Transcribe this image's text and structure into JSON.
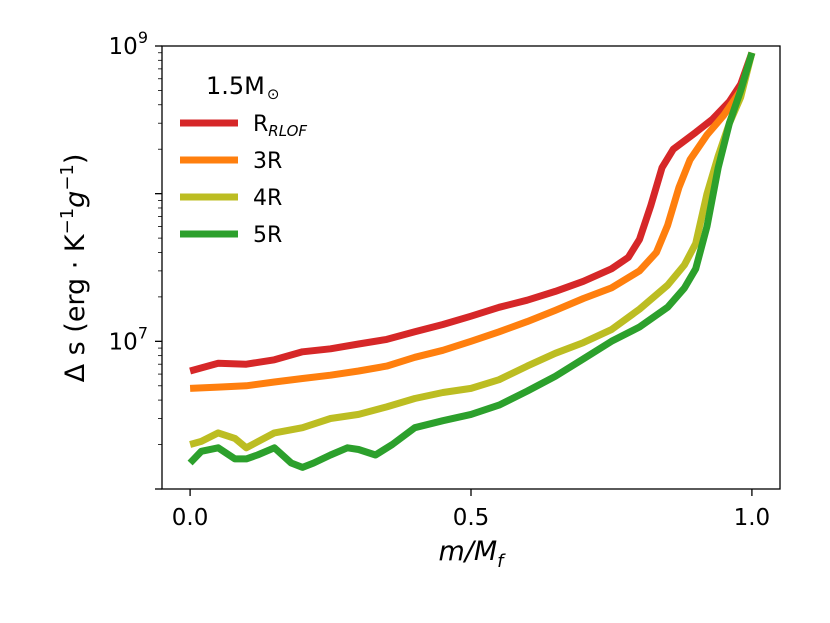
{
  "chart_data": {
    "type": "line",
    "title": "",
    "xlabel": "m/M",
    "xlabel_sub": "f",
    "ylabel": "Δ s (erg · K",
    "ylabel_parts": {
      "sup1": "−1",
      "g": "g",
      "sup2": "−1",
      "close": ")"
    },
    "yscale": "log",
    "xlim": [
      -0.05,
      1.05
    ],
    "ylim": [
      1000000,
      1000000000
    ],
    "x_ticks": [
      {
        "v": 0.0,
        "label": "0.0"
      },
      {
        "v": 0.5,
        "label": "0.5"
      },
      {
        "v": 1.0,
        "label": "1.0"
      }
    ],
    "y_ticks": [
      {
        "v": 10000000,
        "base": "10",
        "exp": "7"
      },
      {
        "v": 1000000000,
        "base": "10",
        "exp": "9"
      }
    ],
    "legend": {
      "title": "1.5M",
      "title_symbol": "⊙",
      "placement": "upper-left",
      "entries": [
        {
          "label": "R",
          "sub": "RLOF",
          "color": "#d62728"
        },
        {
          "label": "3R",
          "sub": "",
          "color": "#ff7f0e"
        },
        {
          "label": "4R",
          "sub": "",
          "color": "#bcbd22"
        },
        {
          "label": "5R",
          "sub": "",
          "color": "#2ca02c"
        }
      ]
    },
    "series": [
      {
        "name": "R_RLOF",
        "color": "#d62728",
        "x": [
          0.0,
          0.05,
          0.1,
          0.15,
          0.2,
          0.25,
          0.3,
          0.35,
          0.4,
          0.45,
          0.5,
          0.55,
          0.6,
          0.65,
          0.7,
          0.75,
          0.78,
          0.8,
          0.82,
          0.84,
          0.86,
          0.9,
          0.93,
          0.96,
          0.98,
          1.0
        ],
        "y": [
          6300000,
          7100000,
          7000000,
          7500000,
          8500000,
          8900000,
          9600000,
          10300000,
          11600000,
          13000000,
          14800000,
          17000000,
          19000000,
          21800000,
          25500000,
          31000000,
          37000000,
          49000000,
          83000000,
          150000000,
          200000000,
          260000000,
          320000000,
          420000000,
          550000000,
          900000000
        ]
      },
      {
        "name": "3R",
        "color": "#ff7f0e",
        "x": [
          0.0,
          0.05,
          0.1,
          0.15,
          0.2,
          0.25,
          0.3,
          0.35,
          0.4,
          0.45,
          0.5,
          0.55,
          0.6,
          0.65,
          0.7,
          0.75,
          0.8,
          0.83,
          0.85,
          0.87,
          0.89,
          0.92,
          0.95,
          0.98,
          1.0
        ],
        "y": [
          4800000,
          4900000,
          5000000,
          5300000,
          5600000,
          5900000,
          6300000,
          6800000,
          7800000,
          8700000,
          10000000,
          11600000,
          13600000,
          16200000,
          19500000,
          23000000,
          30000000,
          40000000,
          61000000,
          110000000,
          170000000,
          250000000,
          340000000,
          500000000,
          900000000
        ]
      },
      {
        "name": "4R",
        "color": "#bcbd22",
        "x": [
          0.0,
          0.02,
          0.05,
          0.08,
          0.1,
          0.15,
          0.2,
          0.25,
          0.3,
          0.35,
          0.4,
          0.45,
          0.5,
          0.55,
          0.6,
          0.65,
          0.7,
          0.75,
          0.8,
          0.85,
          0.88,
          0.9,
          0.92,
          0.94,
          0.96,
          0.98,
          1.0
        ],
        "y": [
          2000000,
          2100000,
          2400000,
          2200000,
          1900000,
          2400000,
          2600000,
          3000000,
          3200000,
          3600000,
          4100000,
          4500000,
          4800000,
          5500000,
          6800000,
          8300000,
          9800000,
          12000000,
          16500000,
          24000000,
          33000000,
          46000000,
          100000000,
          180000000,
          300000000,
          450000000,
          900000000
        ]
      },
      {
        "name": "5R",
        "color": "#2ca02c",
        "x": [
          0.0,
          0.02,
          0.05,
          0.08,
          0.1,
          0.12,
          0.15,
          0.18,
          0.2,
          0.22,
          0.25,
          0.28,
          0.3,
          0.33,
          0.36,
          0.4,
          0.45,
          0.5,
          0.55,
          0.6,
          0.65,
          0.7,
          0.75,
          0.8,
          0.85,
          0.88,
          0.9,
          0.92,
          0.94,
          0.96,
          0.98,
          1.0
        ],
        "y": [
          1500000,
          1800000,
          1900000,
          1600000,
          1600000,
          1700000,
          1900000,
          1500000,
          1400000,
          1500000,
          1700000,
          1900000,
          1850000,
          1700000,
          2000000,
          2600000,
          2900000,
          3200000,
          3700000,
          4600000,
          5800000,
          7600000,
          10000000,
          12500000,
          17000000,
          23000000,
          31000000,
          60000000,
          150000000,
          300000000,
          500000000,
          900000000
        ]
      }
    ]
  }
}
